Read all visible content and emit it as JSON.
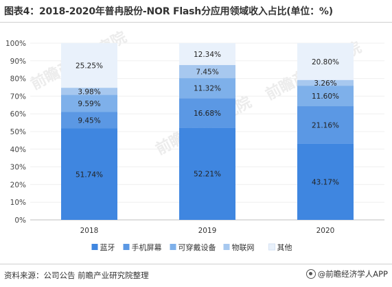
{
  "title": "图表4：2018-2020年普冉股份-NOR Flash分应用领域收入占比(单位：%)",
  "source": "资料来源：公司公告 前瞻产业研究院整理",
  "brand": "@前瞻经济学人APP",
  "watermarks": [
    "前瞻产业研究院",
    "前瞻产业研究院",
    "前瞻产业研究院"
  ],
  "colors": {
    "蓝牙": "#3f86e0",
    "手机屏幕": "#5b98e4",
    "可穿戴设备": "#7eb0ea",
    "物联网": "#a7c8ef",
    "其他": "#e9f1fb"
  },
  "chart_data": {
    "type": "bar",
    "stacked": true,
    "categories": [
      "2018",
      "2019",
      "2020"
    ],
    "series": [
      {
        "name": "蓝牙",
        "values": [
          51.74,
          52.21,
          43.17
        ],
        "labels": [
          "51.74%",
          "52.21%",
          "43.17%"
        ]
      },
      {
        "name": "手机屏幕",
        "values": [
          9.45,
          16.68,
          21.16
        ],
        "labels": [
          "9.45%",
          "16.68%",
          "21.16%"
        ]
      },
      {
        "name": "可穿戴设备",
        "values": [
          9.59,
          11.32,
          11.6
        ],
        "labels": [
          "9.59%",
          "11.32%",
          "11.60%"
        ]
      },
      {
        "name": "物联网",
        "values": [
          3.98,
          7.45,
          3.26
        ],
        "labels": [
          "3.98%",
          "7.45%",
          "3.26%"
        ]
      },
      {
        "name": "其他",
        "values": [
          25.25,
          12.34,
          20.8
        ],
        "labels": [
          "25.25%",
          "12.34%",
          "20.80%"
        ]
      }
    ],
    "yticks": [
      "0%",
      "10%",
      "20%",
      "30%",
      "40%",
      "50%",
      "60%",
      "70%",
      "80%",
      "90%",
      "100%"
    ],
    "ylim": [
      0,
      100
    ],
    "legend_position": "bottom"
  }
}
